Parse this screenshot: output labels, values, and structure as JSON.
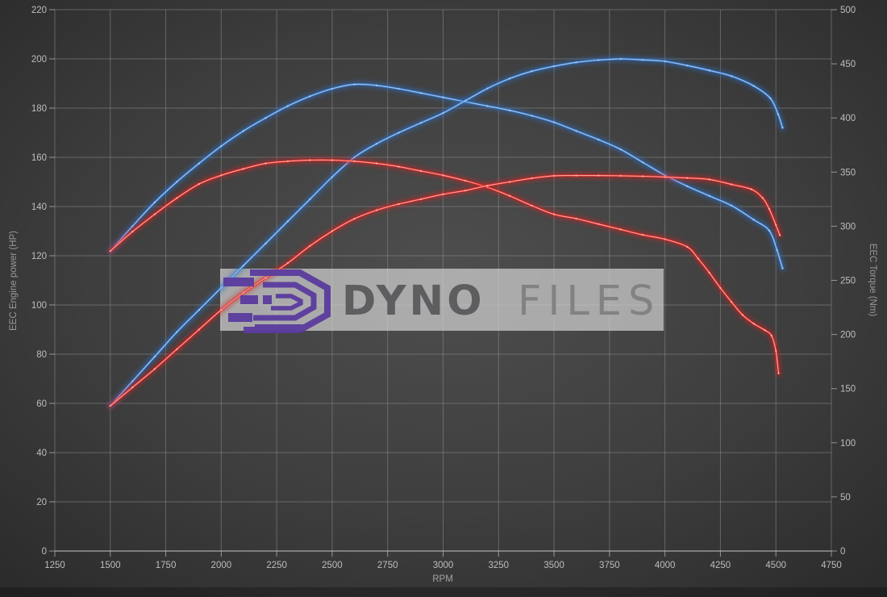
{
  "watermark": {
    "brand_bold": "DYNO",
    "brand_light": "FILES",
    "logo_color": "#5a3c9e",
    "box_color": "#d4d4d4",
    "brand_bold_color": "#58585b",
    "brand_light_color": "#7f7f82"
  },
  "theme": {
    "bg_center": "#4e4e4e",
    "bg_mid": "#3e3e3e",
    "bg_edge": "#2b2b2b",
    "grid_color": "#8c8c8c",
    "axis_line_color": "#bdbdbd",
    "tick_text_color": "#bdbdbd",
    "axis_title_color": "#9a9a9a"
  },
  "chart_data": {
    "type": "line",
    "title": "",
    "legend": "none",
    "grid": true,
    "x": {
      "label": "RPM",
      "min": 1250,
      "max": 4750,
      "ticks": [
        1250,
        1500,
        1750,
        2000,
        2250,
        2500,
        2750,
        3000,
        3250,
        3500,
        3750,
        4000,
        4250,
        4500,
        4750
      ]
    },
    "y_left": {
      "label": "EEC Engine power (HP)",
      "min": 0,
      "max": 220,
      "ticks": [
        0,
        20,
        40,
        60,
        80,
        100,
        120,
        140,
        160,
        180,
        200,
        220
      ]
    },
    "y_right": {
      "label": "EEC Torque (Nm)",
      "min": 0,
      "max": 500,
      "ticks": [
        0,
        50,
        100,
        150,
        200,
        250,
        300,
        350,
        400,
        450,
        500
      ]
    },
    "series": [
      {
        "name": "blue-torque-curve",
        "axis": "right",
        "color": "#3a7bd0",
        "glow": "#2e6fc4",
        "core": "#a8cdf3",
        "peak": {
          "rpm": 2600,
          "value": 431
        },
        "points": [
          [
            1500,
            277
          ],
          [
            1600,
            300
          ],
          [
            1700,
            322
          ],
          [
            1800,
            341
          ],
          [
            1900,
            358
          ],
          [
            2000,
            374
          ],
          [
            2100,
            388
          ],
          [
            2200,
            400
          ],
          [
            2300,
            411
          ],
          [
            2400,
            420
          ],
          [
            2500,
            427
          ],
          [
            2600,
            431
          ],
          [
            2700,
            430
          ],
          [
            2800,
            427
          ],
          [
            2900,
            423
          ],
          [
            3000,
            419
          ],
          [
            3100,
            415
          ],
          [
            3200,
            411
          ],
          [
            3300,
            407
          ],
          [
            3400,
            402
          ],
          [
            3500,
            396
          ],
          [
            3600,
            388
          ],
          [
            3700,
            380
          ],
          [
            3800,
            371
          ],
          [
            3900,
            359
          ],
          [
            4000,
            347
          ],
          [
            4100,
            337
          ],
          [
            4200,
            328
          ],
          [
            4300,
            319
          ],
          [
            4400,
            306
          ],
          [
            4470,
            296
          ],
          [
            4505,
            278
          ],
          [
            4530,
            261
          ]
        ]
      },
      {
        "name": "blue-power-curve",
        "axis": "left",
        "color": "#3a7bd0",
        "glow": "#2e6fc4",
        "core": "#a8cdf3",
        "peak": {
          "rpm": 3800,
          "value": 200
        },
        "points": [
          [
            1500,
            59
          ],
          [
            1600,
            69
          ],
          [
            1700,
            79
          ],
          [
            1800,
            89
          ],
          [
            1900,
            98
          ],
          [
            2000,
            107
          ],
          [
            2100,
            116
          ],
          [
            2200,
            125
          ],
          [
            2300,
            134
          ],
          [
            2400,
            143
          ],
          [
            2500,
            152
          ],
          [
            2600,
            160
          ],
          [
            2700,
            165.5
          ],
          [
            2800,
            170
          ],
          [
            2900,
            174
          ],
          [
            3000,
            178
          ],
          [
            3100,
            183
          ],
          [
            3200,
            188
          ],
          [
            3300,
            192
          ],
          [
            3400,
            195
          ],
          [
            3500,
            197
          ],
          [
            3600,
            198.6
          ],
          [
            3700,
            199.5
          ],
          [
            3800,
            200
          ],
          [
            3900,
            199.6
          ],
          [
            4000,
            199
          ],
          [
            4100,
            197.3
          ],
          [
            4200,
            195.3
          ],
          [
            4300,
            193
          ],
          [
            4400,
            189
          ],
          [
            4475,
            184
          ],
          [
            4510,
            177.5
          ],
          [
            4530,
            172
          ]
        ]
      },
      {
        "name": "red-torque-curve",
        "axis": "right",
        "color": "#e02828",
        "glow": "#d42020",
        "core": "#ffb3a6",
        "peak": {
          "rpm": 2450,
          "value": 361
        },
        "points": [
          [
            1500,
            277
          ],
          [
            1600,
            295
          ],
          [
            1700,
            311
          ],
          [
            1800,
            326
          ],
          [
            1900,
            339
          ],
          [
            2000,
            347
          ],
          [
            2100,
            353
          ],
          [
            2200,
            358
          ],
          [
            2300,
            360
          ],
          [
            2400,
            361
          ],
          [
            2500,
            361
          ],
          [
            2600,
            360
          ],
          [
            2700,
            358
          ],
          [
            2800,
            355
          ],
          [
            2900,
            351
          ],
          [
            3000,
            347
          ],
          [
            3100,
            342
          ],
          [
            3200,
            336
          ],
          [
            3300,
            328
          ],
          [
            3400,
            319
          ],
          [
            3500,
            311
          ],
          [
            3600,
            307
          ],
          [
            3700,
            302
          ],
          [
            3800,
            297
          ],
          [
            3900,
            292
          ],
          [
            4000,
            288
          ],
          [
            4100,
            281
          ],
          [
            4150,
            270
          ],
          [
            4200,
            257
          ],
          [
            4250,
            243
          ],
          [
            4300,
            230
          ],
          [
            4350,
            218
          ],
          [
            4400,
            210
          ],
          [
            4450,
            204
          ],
          [
            4480,
            199
          ],
          [
            4500,
            185
          ],
          [
            4512,
            164
          ]
        ]
      },
      {
        "name": "red-power-curve",
        "axis": "left",
        "color": "#e02828",
        "glow": "#d42020",
        "core": "#ffb3a6",
        "peak": {
          "rpm": 3650,
          "value": 152.6
        },
        "points": [
          [
            1500,
            59
          ],
          [
            1600,
            66.5
          ],
          [
            1700,
            74
          ],
          [
            1800,
            82
          ],
          [
            1900,
            90
          ],
          [
            2000,
            98
          ],
          [
            2100,
            105
          ],
          [
            2200,
            111
          ],
          [
            2300,
            117
          ],
          [
            2400,
            124
          ],
          [
            2500,
            130
          ],
          [
            2600,
            135
          ],
          [
            2700,
            138.5
          ],
          [
            2800,
            141
          ],
          [
            2900,
            143
          ],
          [
            3000,
            145
          ],
          [
            3100,
            146.5
          ],
          [
            3200,
            148.5
          ],
          [
            3300,
            150
          ],
          [
            3400,
            151.5
          ],
          [
            3500,
            152.5
          ],
          [
            3600,
            152.6
          ],
          [
            3700,
            152.6
          ],
          [
            3800,
            152.5
          ],
          [
            3900,
            152.3
          ],
          [
            4000,
            152
          ],
          [
            4100,
            151.6
          ],
          [
            4200,
            151
          ],
          [
            4300,
            149
          ],
          [
            4390,
            147
          ],
          [
            4440,
            143.5
          ],
          [
            4470,
            139
          ],
          [
            4500,
            132.5
          ],
          [
            4518,
            128.3
          ]
        ]
      }
    ]
  }
}
